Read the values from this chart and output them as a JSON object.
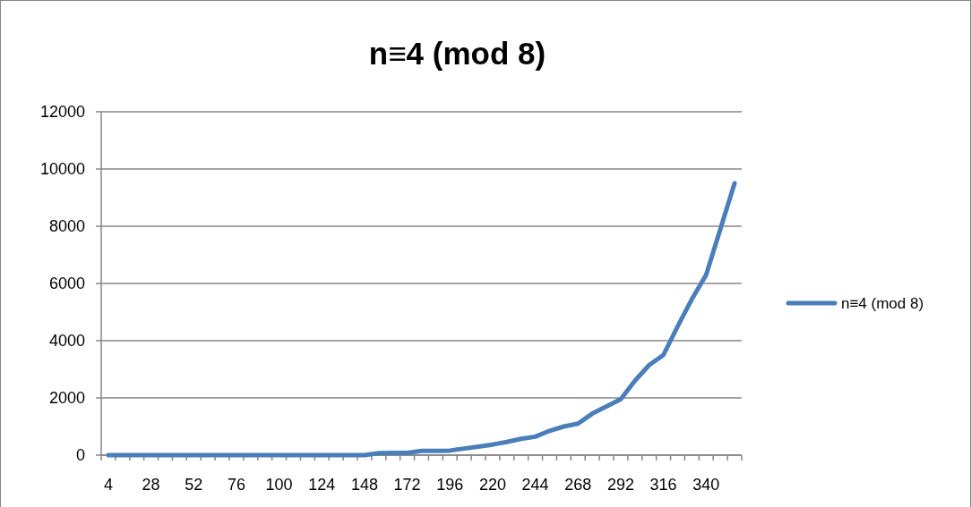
{
  "chart_data": {
    "type": "line",
    "title": "n≡4 (mod 8)",
    "categories": [
      "4",
      null,
      null,
      "28",
      null,
      null,
      "52",
      null,
      null,
      "76",
      null,
      null,
      "100",
      null,
      null,
      "124",
      null,
      null,
      "148",
      null,
      null,
      "172",
      null,
      null,
      "196",
      null,
      null,
      "220",
      null,
      null,
      "244",
      null,
      null,
      "268",
      null,
      null,
      "292",
      null,
      null,
      "316",
      null,
      null,
      "340",
      null,
      null
    ],
    "series": [
      {
        "name": "n≡4 (mod 8)",
        "color": "#4a7ebb",
        "values": [
          0,
          0,
          0,
          0,
          0,
          0,
          0,
          0,
          0,
          0,
          0,
          0,
          0,
          0,
          0,
          0,
          0,
          0,
          0,
          70,
          80,
          80,
          150,
          150,
          160,
          230,
          300,
          370,
          460,
          570,
          645,
          850,
          1000,
          1100,
          1450,
          1700,
          1950,
          2600,
          3150,
          3500,
          4500,
          5450,
          6300,
          7900,
          9500
        ]
      }
    ],
    "ylim": [
      0,
      12000
    ],
    "yticks": [
      0,
      2000,
      4000,
      6000,
      8000,
      10000,
      12000
    ],
    "grid": "y",
    "legend": "right",
    "marker": "none",
    "line_style": "solid"
  }
}
